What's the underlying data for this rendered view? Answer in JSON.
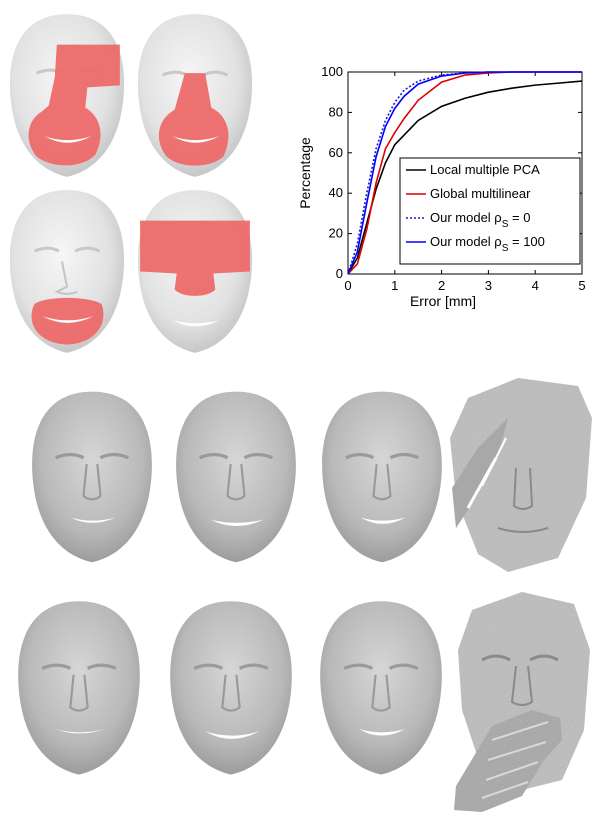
{
  "chart_data": {
    "type": "line",
    "xlabel": "Error [mm]",
    "ylabel": "Percentage",
    "xlim": [
      0,
      5
    ],
    "ylim": [
      0,
      100
    ],
    "xticks": [
      "0",
      "1",
      "2",
      "3",
      "4",
      "5"
    ],
    "yticks": [
      "0",
      "20",
      "40",
      "60",
      "80",
      "100"
    ],
    "legend_position": "bottom-right",
    "series": [
      {
        "name": "Local multiple PCA",
        "color": "#000000",
        "dash": "solid",
        "x": [
          0,
          0.2,
          0.4,
          0.6,
          0.8,
          1.0,
          1.5,
          2.0,
          2.5,
          3.0,
          3.5,
          4.0,
          4.5,
          5.0
        ],
        "y": [
          0,
          8,
          25,
          42,
          55,
          64,
          76,
          83,
          87,
          90,
          92,
          93.5,
          94.5,
          95.5
        ]
      },
      {
        "name": "Global multilinear",
        "color": "#e00000",
        "dash": "solid",
        "x": [
          0,
          0.2,
          0.4,
          0.6,
          0.8,
          1.0,
          1.2,
          1.5,
          2.0,
          2.5,
          3.0,
          3.5,
          4.0,
          5.0
        ],
        "y": [
          0,
          5,
          22,
          45,
          62,
          70,
          77,
          86,
          95,
          98.5,
          99.5,
          100,
          100,
          100
        ]
      },
      {
        "name": "Our model ρS = 0",
        "color": "#1a1acc",
        "dash": "dotted",
        "x": [
          0,
          0.2,
          0.4,
          0.6,
          0.8,
          1.0,
          1.2,
          1.5,
          2.0,
          2.5,
          3.0,
          4.0,
          5.0
        ],
        "y": [
          0,
          15,
          40,
          62,
          76,
          85,
          91,
          95.5,
          98.5,
          99.5,
          100,
          100,
          100
        ]
      },
      {
        "name": "Our model ρS = 100",
        "color": "#0000ff",
        "dash": "solid",
        "x": [
          0,
          0.2,
          0.4,
          0.6,
          0.8,
          1.0,
          1.2,
          1.5,
          2.0,
          2.5,
          3.0,
          4.0,
          5.0
        ],
        "y": [
          0,
          11,
          35,
          58,
          73,
          82,
          88,
          94,
          98,
          99.5,
          100,
          100,
          100
        ]
      }
    ]
  },
  "legend_display": [
    {
      "main": "Local multiple PCA",
      "sub": "",
      "tail": ""
    },
    {
      "main": "Global multilinear",
      "sub": "",
      "tail": ""
    },
    {
      "main": "Our model ρ",
      "sub": "S",
      "tail": " = 0"
    },
    {
      "main": "Our model ρ",
      "sub": "S",
      "tail": " = 100"
    }
  ],
  "face_panels": {
    "mask_color": "#ee6a6a",
    "skin_color": "#e6e6e6",
    "top_masks": [
      "mouth-nose-and-right-cheek",
      "mouth-and-nose",
      "mouth-and-chin",
      "eyes-and-nose"
    ],
    "row2": [
      "smooth-neutral",
      "smooth-neutral",
      "smooth-neutral",
      "noisy-scan-hair-occlusion"
    ],
    "row3": [
      "smooth-expression",
      "smooth-expression",
      "smooth-expression",
      "noisy-scan-hand-occlusion"
    ]
  }
}
